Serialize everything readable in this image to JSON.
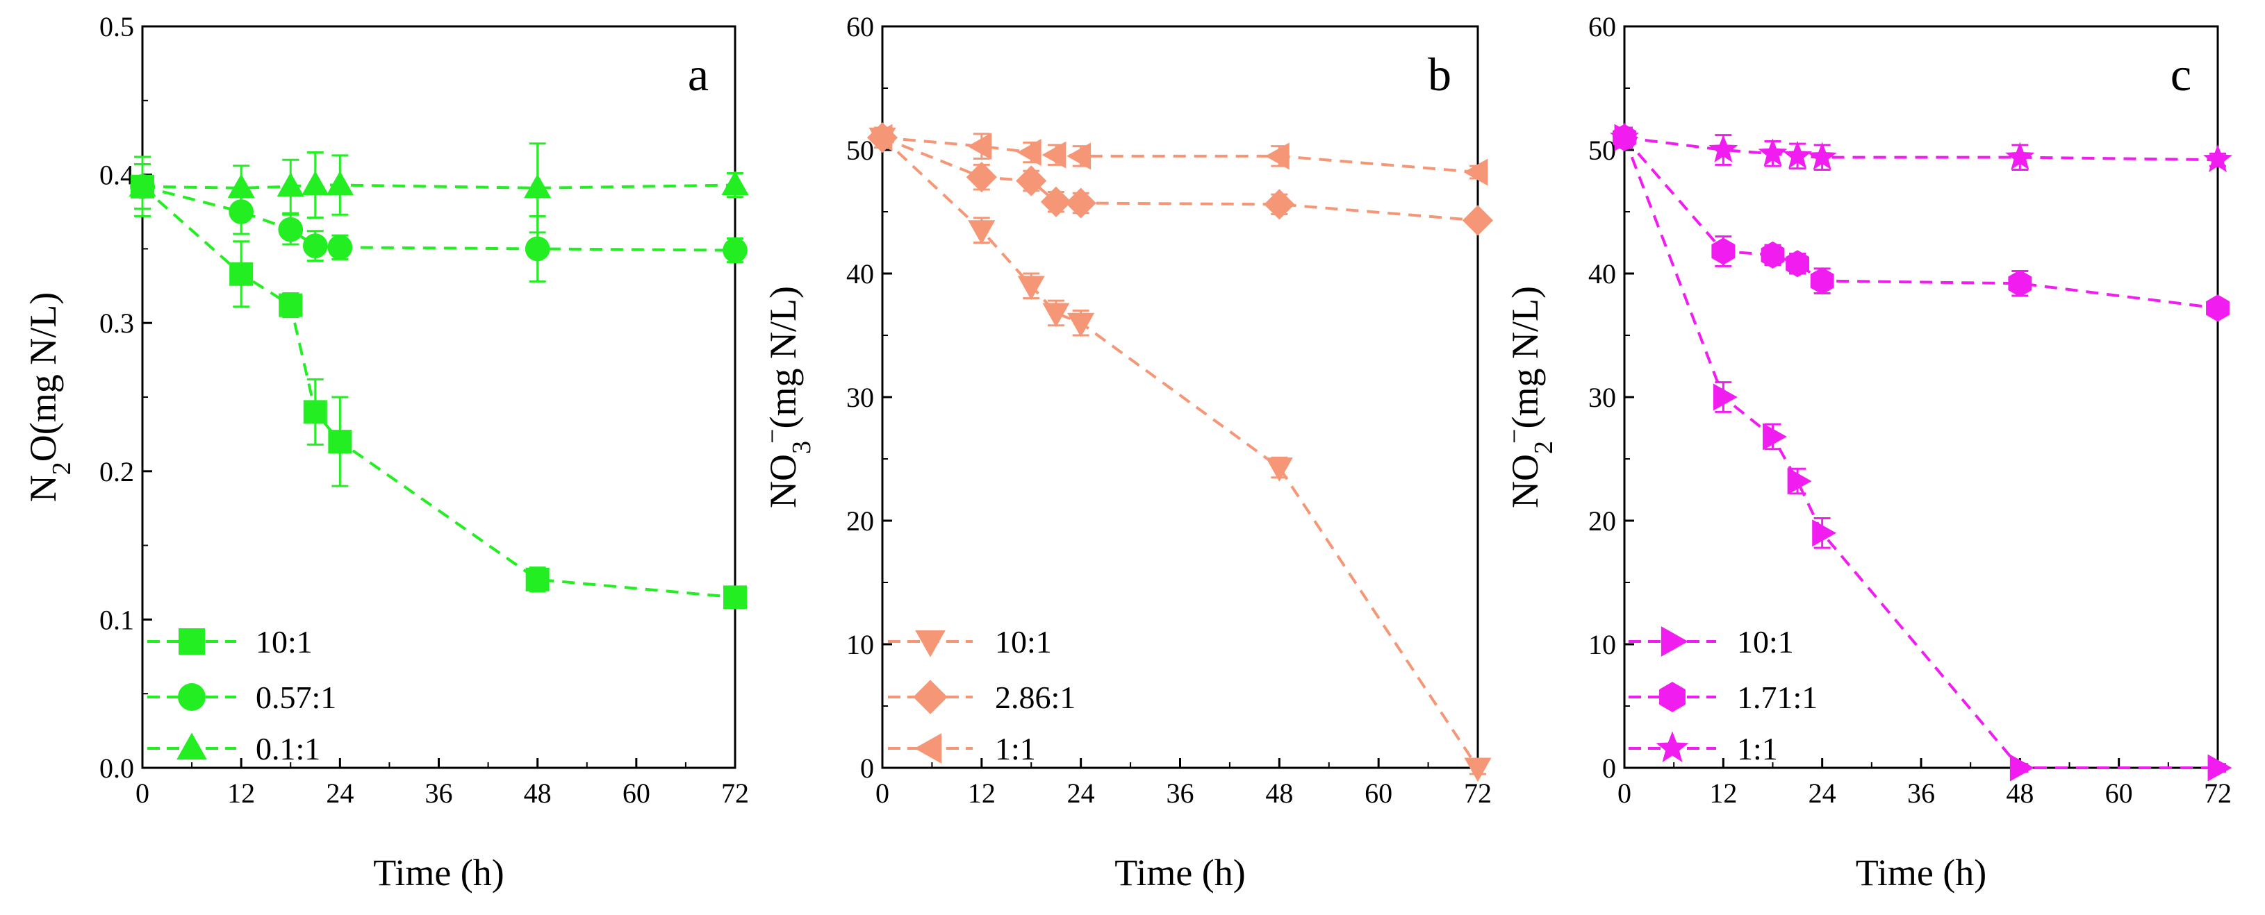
{
  "chart_data": [
    {
      "type": "line",
      "panel": "a",
      "color": "#22ee22",
      "xlabel": "Time (h)",
      "ylabel": {
        "prefix": "N",
        "sub": "2",
        "rest": "O(mg N/L)"
      },
      "xlim": [
        0,
        72
      ],
      "ylim": [
        0,
        0.5
      ],
      "xticks": [
        0,
        12,
        24,
        36,
        48,
        60,
        72
      ],
      "xtick_labels": [
        "0",
        "12",
        "24",
        "36",
        "48",
        "60",
        "72"
      ],
      "yticks": [
        0,
        0.1,
        0.2,
        0.3,
        0.4,
        0.5
      ],
      "ytick_labels": [
        "0.0",
        "0.1",
        "0.2",
        "0.3",
        "0.4",
        "0.5"
      ],
      "legend_position": "bottom-left",
      "series": [
        {
          "name": "10:1",
          "marker": "square",
          "x": [
            0,
            12,
            18,
            21,
            24,
            48,
            72
          ],
          "y": [
            0.392,
            0.333,
            0.312,
            0.24,
            0.22,
            0.127,
            0.115
          ],
          "err": [
            0.015,
            0.022,
            0.008,
            0.022,
            0.03,
            0.008,
            0.005
          ]
        },
        {
          "name": "0.57:1",
          "marker": "circle",
          "x": [
            0,
            12,
            18,
            21,
            24,
            48,
            72
          ],
          "y": [
            0.392,
            0.375,
            0.363,
            0.352,
            0.351,
            0.35,
            0.349
          ],
          "err": [
            0.015,
            0.015,
            0.01,
            0.01,
            0.008,
            0.022,
            0.008
          ]
        },
        {
          "name": "0.1:1",
          "marker": "triangle-up",
          "x": [
            0,
            12,
            18,
            21,
            24,
            48,
            72
          ],
          "y": [
            0.392,
            0.391,
            0.392,
            0.393,
            0.393,
            0.391,
            0.393
          ],
          "err": [
            0.02,
            0.015,
            0.018,
            0.022,
            0.02,
            0.03,
            0.008
          ]
        }
      ]
    },
    {
      "type": "line",
      "panel": "b",
      "color": "#f59777",
      "xlabel": "Time (h)",
      "ylabel": {
        "prefix": "NO",
        "sub": "3",
        "sup": "−",
        "rest": "(mg N/L)"
      },
      "xlim": [
        0,
        72
      ],
      "ylim": [
        0,
        60
      ],
      "xticks": [
        0,
        12,
        24,
        36,
        48,
        60,
        72
      ],
      "xtick_labels": [
        "0",
        "12",
        "24",
        "36",
        "48",
        "60",
        "72"
      ],
      "yticks": [
        0,
        10,
        20,
        30,
        40,
        50,
        60
      ],
      "ytick_labels": [
        "0",
        "10",
        "20",
        "30",
        "40",
        "50",
        "60"
      ],
      "legend_position": "bottom-left",
      "series": [
        {
          "name": "10:1",
          "marker": "triangle-down",
          "x": [
            0,
            12,
            18,
            21,
            24,
            48,
            72
          ],
          "y": [
            51.0,
            43.5,
            39.0,
            36.8,
            36.0,
            24.3,
            0.0
          ],
          "err": [
            0.8,
            1.0,
            1.0,
            1.0,
            1.0,
            0.8,
            0.5
          ]
        },
        {
          "name": "2.86:1",
          "marker": "diamond",
          "x": [
            0,
            12,
            18,
            21,
            24,
            48,
            72
          ],
          "y": [
            51.0,
            47.8,
            47.5,
            45.8,
            45.7,
            45.6,
            44.3
          ],
          "err": [
            0.8,
            1.0,
            0.8,
            0.8,
            0.8,
            0.8,
            0.5
          ]
        },
        {
          "name": "1:1",
          "marker": "triangle-left",
          "x": [
            0,
            12,
            18,
            21,
            24,
            48,
            72
          ],
          "y": [
            51.0,
            50.3,
            49.8,
            49.6,
            49.5,
            49.5,
            48.2
          ],
          "err": [
            0.8,
            1.0,
            0.8,
            0.8,
            0.8,
            0.8,
            0.5
          ]
        }
      ]
    },
    {
      "type": "line",
      "panel": "c",
      "color": "#f01cf0",
      "xlabel": "Time (h)",
      "ylabel": {
        "prefix": "NO",
        "sub": "2",
        "sup": "−",
        "rest": "(mg N/L)"
      },
      "xlim": [
        0,
        72
      ],
      "ylim": [
        0,
        60
      ],
      "xticks": [
        0,
        12,
        24,
        36,
        48,
        60,
        72
      ],
      "xtick_labels": [
        "0",
        "12",
        "24",
        "36",
        "48",
        "60",
        "72"
      ],
      "yticks": [
        0,
        10,
        20,
        30,
        40,
        50,
        60
      ],
      "ytick_labels": [
        "0",
        "10",
        "20",
        "30",
        "40",
        "50",
        "60"
      ],
      "legend_position": "bottom-left",
      "series": [
        {
          "name": "10:1",
          "marker": "triangle-right",
          "x": [
            0,
            12,
            18,
            21,
            24,
            48,
            72
          ],
          "y": [
            51.0,
            30.0,
            26.8,
            23.2,
            19.0,
            0.0,
            0.0
          ],
          "err": [
            0.8,
            1.2,
            1.0,
            1.0,
            1.2,
            0.3,
            0.3
          ]
        },
        {
          "name": "1.71:1",
          "marker": "hexagon",
          "x": [
            0,
            12,
            18,
            21,
            24,
            48,
            72
          ],
          "y": [
            51.0,
            41.8,
            41.5,
            40.8,
            39.4,
            39.2,
            37.2
          ],
          "err": [
            0.8,
            1.2,
            0.8,
            0.8,
            1.0,
            1.0,
            0.6
          ]
        },
        {
          "name": "1:1",
          "marker": "star",
          "x": [
            0,
            12,
            18,
            21,
            24,
            48,
            72
          ],
          "y": [
            51.0,
            50.0,
            49.7,
            49.5,
            49.4,
            49.4,
            49.2
          ],
          "err": [
            0.8,
            1.2,
            1.0,
            1.0,
            1.0,
            1.0,
            0.5
          ]
        }
      ]
    }
  ]
}
